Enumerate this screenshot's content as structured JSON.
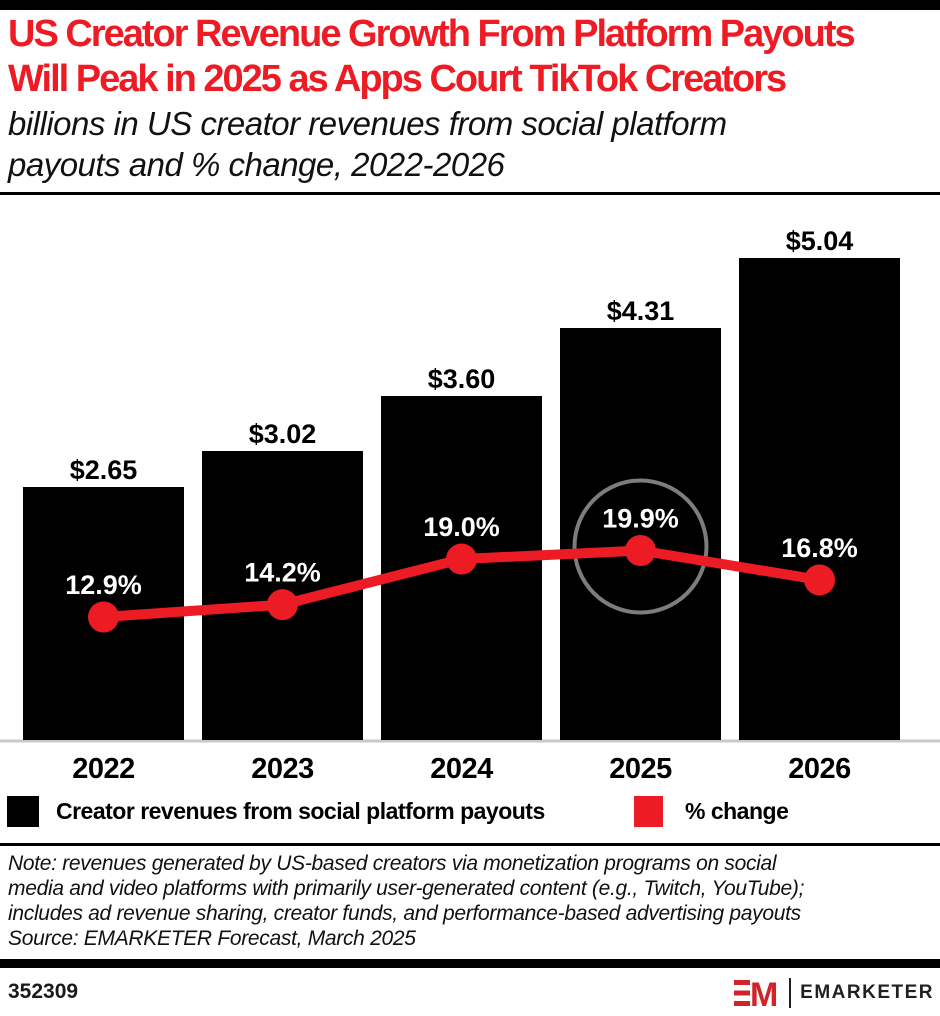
{
  "header": {
    "title_lines": [
      "US Creator Revenue Growth From Platform Payouts",
      "Will Peak in 2025 as Apps Court TikTok Creators"
    ],
    "subtitle_lines": [
      "billions in US creator revenues from social platform",
      "payouts and % change, 2022-2026"
    ]
  },
  "chart_data": {
    "type": "bar",
    "subtype": "bar-line-combo",
    "title": "US Creator Revenue Growth From Platform Payouts Will Peak in 2025 as Apps Court TikTok Creators",
    "subtitle": "billions in US creator revenues from social platform payouts and % change, 2022-2026",
    "categories": [
      "2022",
      "2023",
      "2024",
      "2025",
      "2026"
    ],
    "series": [
      {
        "name": "Creator revenues from social platform payouts",
        "type": "bar",
        "unit": "billions USD",
        "values": [
          2.65,
          3.02,
          3.6,
          4.31,
          5.04
        ],
        "labels": [
          "$2.65",
          "$3.02",
          "$3.60",
          "$4.31",
          "$5.04"
        ],
        "color": "#000000"
      },
      {
        "name": "% change",
        "type": "line",
        "unit": "%",
        "values": [
          12.9,
          14.2,
          19.0,
          19.9,
          16.8
        ],
        "labels": [
          "12.9%",
          "14.2%",
          "19.0%",
          "19.9%",
          "16.8%"
        ],
        "color": "#ED1C24"
      }
    ],
    "annotations": [
      {
        "type": "circle-highlight",
        "category": "2025",
        "series": "% change",
        "label": "19.9%"
      }
    ],
    "xlabel": "",
    "ylabel": "",
    "grid": false,
    "legend_position": "bottom",
    "colors": {
      "bar": "#000000",
      "line": "#ED1C24",
      "point": "#ED1C24",
      "bar_label": "#000000",
      "pct_label": "#ffffff",
      "highlight_circle": "#7d7d7d",
      "axis_line": "#c9c9c9",
      "title": "#ED1C24"
    }
  },
  "legend": {
    "items": [
      {
        "label": "Creator revenues from social platform payouts",
        "color": "#000000"
      },
      {
        "label": "% change",
        "color": "#ED1C24"
      }
    ]
  },
  "footnote": {
    "note_lines": [
      "Note: revenues generated by US-based creators via monetization programs on social",
      "media and video platforms with primarily user-generated content (e.g., Twitch, YouTube);",
      "includes ad revenue sharing, creator funds, and performance-based advertising payouts"
    ],
    "source": "Source: EMARKETER Forecast, March 2025"
  },
  "footer": {
    "chart_id": "352309",
    "logo": {
      "mark": "EM",
      "wordmark": "EMARKETER",
      "mark_color": "#D2232A"
    }
  }
}
